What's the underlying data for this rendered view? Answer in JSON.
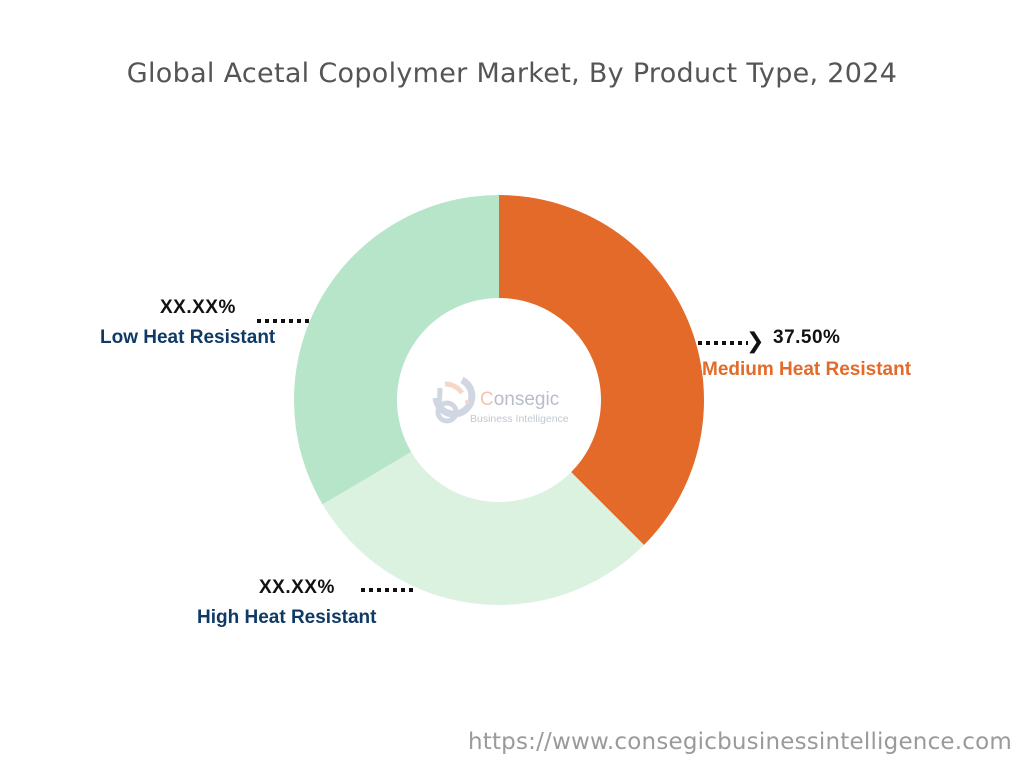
{
  "chart_data": {
    "type": "pie",
    "subtype": "donut",
    "title": "Global Acetal Copolymer Market, By Product Type, 2024",
    "categories": [
      "Medium Heat Resistant",
      "High Heat Resistant",
      "Low Heat Resistant"
    ],
    "values": [
      37.5,
      29.0,
      33.5
    ],
    "value_labels": [
      "37.50%",
      "XX.XX%",
      "XX.XX%"
    ],
    "colors": [
      "#e36a28",
      "#daf2df",
      "#b7e5c9"
    ],
    "start_angle_deg": 0,
    "direction": "clockwise",
    "legend": "none (direct labels)",
    "annotations": [
      "Consegic Business Intelligence (watermark)"
    ]
  },
  "title": "Global Acetal Copolymer Market, By Product Type, 2024",
  "labels": {
    "medium": {
      "pct": "37.50%",
      "name": "Medium Heat Resistant",
      "color": "#e36a28"
    },
    "low": {
      "pct": "XX.XX%",
      "name": "Low Heat Resistant",
      "color": "#0f3a66"
    },
    "high": {
      "pct": "XX.XX%",
      "name": "High Heat Resistant",
      "color": "#0f3a66"
    }
  },
  "logo": {
    "first_letter": "C",
    "name_rest": "onsegic",
    "sub": "Business Intelligence"
  },
  "footer": {
    "url": "https://www.consegicbusinessintelligence.com"
  }
}
